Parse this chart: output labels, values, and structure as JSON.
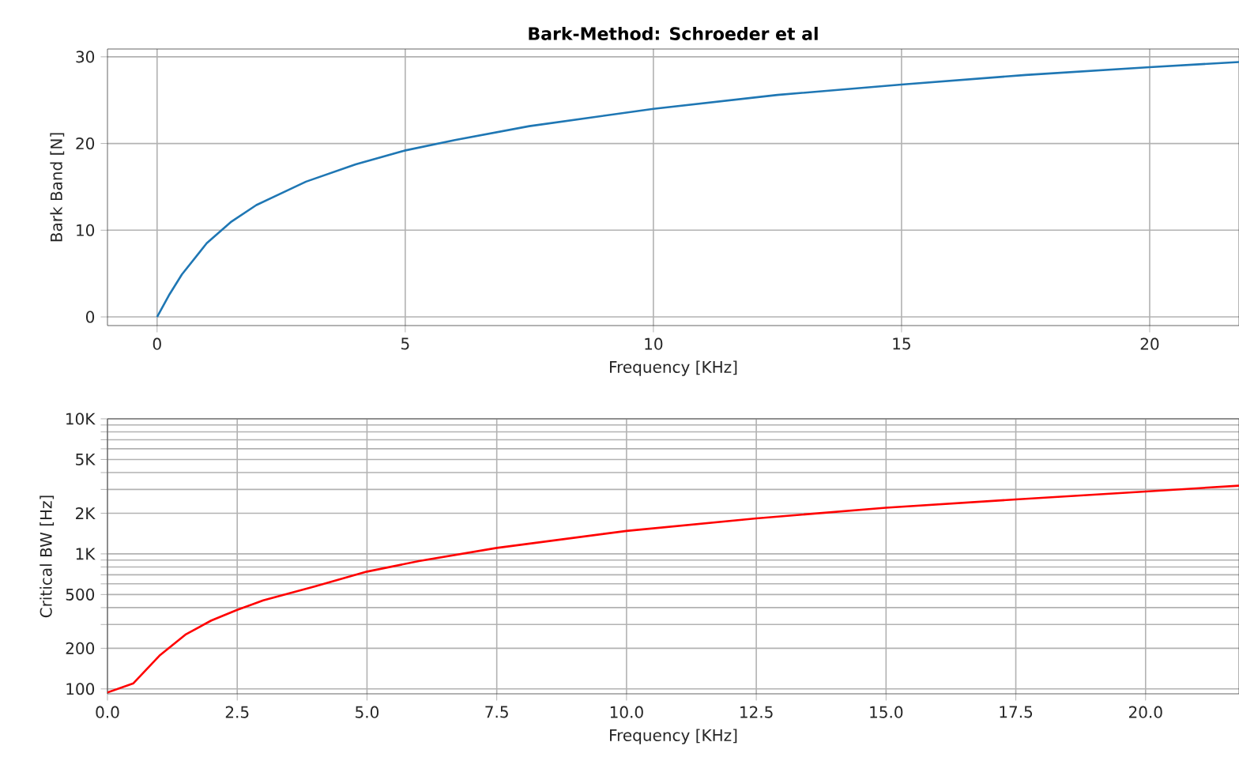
{
  "chart_data": [
    {
      "type": "line",
      "title": "Bark-Method: Schroeder et al",
      "xlabel": "Frequency [KHz]",
      "ylabel": "Bark Band [N]",
      "xlim": [
        -1,
        21.8
      ],
      "ylim": [
        -1,
        30.9
      ],
      "xticks": [
        0,
        5,
        10,
        15,
        20
      ],
      "yticks": [
        0,
        10,
        20,
        30
      ],
      "grid": true,
      "x": [
        0,
        0.25,
        0.5,
        1,
        1.5,
        2,
        3,
        4,
        5,
        6,
        7.5,
        10,
        12.5,
        15,
        17.5,
        20,
        21.8
      ],
      "series": [
        {
          "color": "#1f77b4",
          "values": [
            0,
            2.6,
            4.9,
            8.5,
            11.0,
            12.9,
            15.6,
            17.6,
            19.2,
            20.4,
            22.0,
            24.0,
            25.6,
            26.8,
            27.9,
            28.8,
            29.4
          ]
        }
      ]
    },
    {
      "type": "line",
      "xlabel": "Frequency [KHz]",
      "ylabel": "Critical BW [Hz]",
      "log": "y",
      "xlim": [
        0,
        21.8
      ],
      "ylim": [
        92,
        10000
      ],
      "grid": true,
      "xticks": [
        {
          "value": 0,
          "label": "0.0"
        },
        {
          "value": 2.5,
          "label": "2.5"
        },
        {
          "value": 5,
          "label": "5.0"
        },
        {
          "value": 7.5,
          "label": "7.5"
        },
        {
          "value": 10,
          "label": "10.0"
        },
        {
          "value": 12.5,
          "label": "12.5"
        },
        {
          "value": 15,
          "label": "15.0"
        },
        {
          "value": 17.5,
          "label": "17.5"
        },
        {
          "value": 20,
          "label": "20.0"
        }
      ],
      "yticks": [
        100,
        200,
        {
          "value": 300,
          "label": null
        },
        {
          "value": 400,
          "label": null
        },
        500,
        {
          "value": 600,
          "label": null
        },
        {
          "value": 700,
          "label": null
        },
        {
          "value": 800,
          "label": null
        },
        {
          "value": 900,
          "label": null
        },
        {
          "value": 1000,
          "label": "1K"
        },
        {
          "value": 2000,
          "label": "2K"
        },
        {
          "value": 3000,
          "label": null
        },
        {
          "value": 4000,
          "label": null
        },
        {
          "value": 5000,
          "label": "5K"
        },
        {
          "value": 6000,
          "label": null
        },
        {
          "value": 7000,
          "label": null
        },
        {
          "value": 8000,
          "label": null
        },
        {
          "value": 9000,
          "label": null
        },
        {
          "value": 10000,
          "label": "10K"
        }
      ],
      "x": [
        0,
        0.5,
        1,
        1.5,
        2,
        2.5,
        3,
        4,
        5,
        6,
        7.5,
        10,
        12.5,
        15,
        17.5,
        20,
        21.8
      ],
      "series": [
        {
          "color": "#ff0000",
          "values": [
            94,
            110,
            176,
            252,
            321,
            385,
            452,
            575,
            739,
            885,
            1107,
            1479,
            1833,
            2195,
            2531,
            2898,
            3200
          ]
        }
      ]
    }
  ]
}
